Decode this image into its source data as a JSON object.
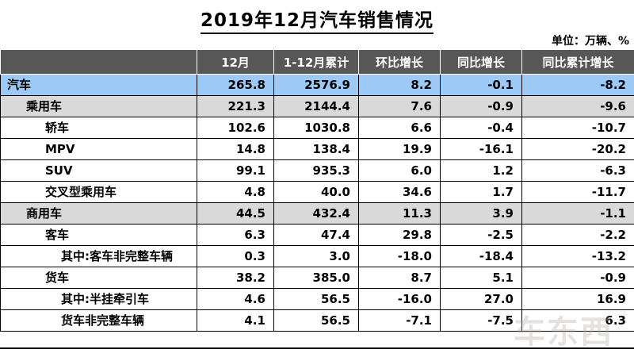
{
  "page": {
    "title": "2019年12月汽车销售情况",
    "unit_label": "单位：万辆、%",
    "watermark": "车东西"
  },
  "colors": {
    "header_bg": "#575757",
    "header_text": "#ffffff",
    "total_row_bg": "#9CC9F5",
    "group_row_bg": "#D9D9D9",
    "plain_row_bg": "#ffffff",
    "border": "#000000"
  },
  "chart_data": {
    "type": "table",
    "title": "2019年12月汽车销售情况",
    "unit": "万辆、%",
    "columns": [
      "",
      "12月",
      "1-12月累计",
      "环比增长",
      "同比增长",
      "同比累计增长"
    ],
    "rows": [
      {
        "label": "汽车",
        "indent": 0,
        "style": "total",
        "values": [
          "265.8",
          "2576.9",
          "8.2",
          "-0.1",
          "-8.2"
        ]
      },
      {
        "label": "乘用车",
        "indent": 1,
        "style": "group",
        "values": [
          "221.3",
          "2144.4",
          "7.6",
          "-0.9",
          "-9.6"
        ]
      },
      {
        "label": "轿车",
        "indent": 2,
        "style": "plain",
        "values": [
          "102.6",
          "1030.8",
          "6.6",
          "-0.4",
          "-10.7"
        ]
      },
      {
        "label": "MPV",
        "indent": 2,
        "style": "plain",
        "values": [
          "14.8",
          "138.4",
          "19.9",
          "-16.1",
          "-20.2"
        ]
      },
      {
        "label": "SUV",
        "indent": 2,
        "style": "plain",
        "values": [
          "99.1",
          "935.3",
          "6.0",
          "1.2",
          "-6.3"
        ]
      },
      {
        "label": "交叉型乘用车",
        "indent": 2,
        "style": "plain",
        "values": [
          "4.8",
          "40.0",
          "34.6",
          "1.7",
          "-11.7"
        ]
      },
      {
        "label": "商用车",
        "indent": 1,
        "style": "group",
        "values": [
          "44.5",
          "432.4",
          "11.3",
          "3.9",
          "-1.1"
        ]
      },
      {
        "label": "客车",
        "indent": 2,
        "style": "plain",
        "values": [
          "6.3",
          "47.4",
          "29.8",
          "-2.5",
          "-2.2"
        ]
      },
      {
        "label": "其中:客车非完整车辆",
        "indent": 3,
        "style": "plain",
        "values": [
          "0.3",
          "3.0",
          "-18.0",
          "-18.4",
          "-13.2"
        ]
      },
      {
        "label": "货车",
        "indent": 2,
        "style": "plain",
        "values": [
          "38.2",
          "385.0",
          "8.7",
          "5.1",
          "-0.9"
        ]
      },
      {
        "label": "其中:半挂牵引车",
        "indent": 3,
        "style": "plain",
        "values": [
          "4.6",
          "56.5",
          "-16.0",
          "27.0",
          "16.9"
        ]
      },
      {
        "label": "货车非完整车辆",
        "indent": 3,
        "style": "plain",
        "values": [
          "4.1",
          "56.5",
          "-7.1",
          "-7.5",
          "6.3"
        ]
      }
    ]
  }
}
